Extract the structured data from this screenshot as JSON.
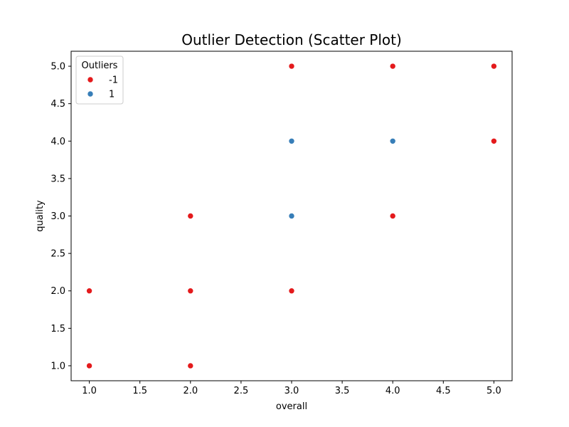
{
  "chart_data": {
    "type": "scatter",
    "title": "Outlier Detection (Scatter Plot)",
    "xlabel": "overall",
    "ylabel": "quality",
    "xlim": [
      0.82,
      5.18
    ],
    "ylim": [
      0.8,
      5.2
    ],
    "xticks": [
      "1.0",
      "1.5",
      "2.0",
      "2.5",
      "3.0",
      "3.5",
      "4.0",
      "4.5",
      "5.0"
    ],
    "yticks": [
      "1.0",
      "1.5",
      "2.0",
      "2.5",
      "3.0",
      "3.5",
      "4.0",
      "4.5",
      "5.0"
    ],
    "grid": false,
    "legend": {
      "title": "Outliers",
      "placement": "top-left",
      "entries": [
        {
          "label": "-1",
          "color": "#e41a1c"
        },
        {
          "label": "1",
          "color": "#377eb8"
        }
      ]
    },
    "series": [
      {
        "name": "-1",
        "color": "#e41a1c",
        "points": [
          {
            "x": 1,
            "y": 1
          },
          {
            "x": 1,
            "y": 2
          },
          {
            "x": 2,
            "y": 1
          },
          {
            "x": 2,
            "y": 2
          },
          {
            "x": 2,
            "y": 3
          },
          {
            "x": 3,
            "y": 2
          },
          {
            "x": 3,
            "y": 5
          },
          {
            "x": 4,
            "y": 3
          },
          {
            "x": 4,
            "y": 5
          },
          {
            "x": 5,
            "y": 4
          },
          {
            "x": 5,
            "y": 5
          }
        ]
      },
      {
        "name": "1",
        "color": "#377eb8",
        "points": [
          {
            "x": 3,
            "y": 3
          },
          {
            "x": 3,
            "y": 4
          },
          {
            "x": 4,
            "y": 4
          }
        ]
      }
    ]
  }
}
